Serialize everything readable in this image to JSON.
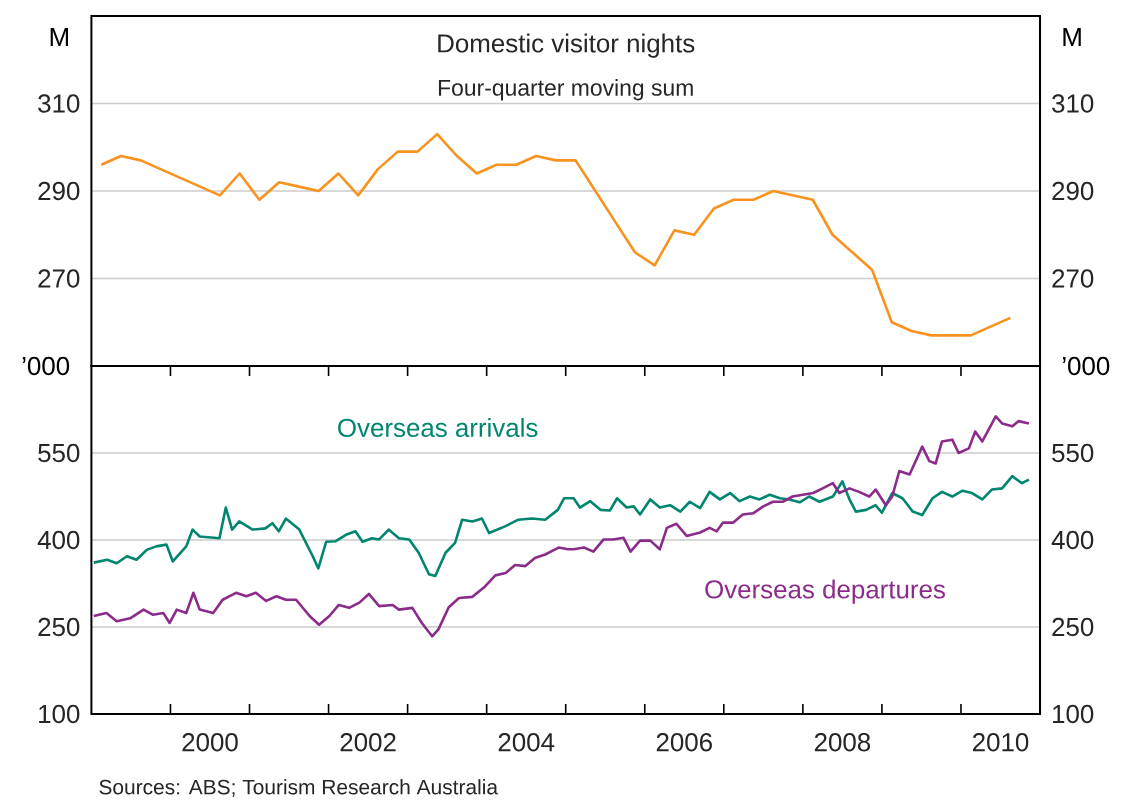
{
  "chart_data": [
    {
      "type": "line",
      "title": "Domestic visitor nights",
      "subtitle": "Four-quarter moving sum",
      "ylabel": "M",
      "y2label": "M",
      "color": "#f7931e",
      "x": [
        1999.125,
        1999.375,
        1999.625,
        1999.875,
        2000.125,
        2000.375,
        2000.625,
        2000.875,
        2001.125,
        2001.375,
        2001.625,
        2001.875,
        2002.125,
        2002.375,
        2002.625,
        2002.875,
        2003.125,
        2003.375,
        2003.625,
        2003.875,
        2004.125,
        2004.375,
        2004.625,
        2004.875,
        2005.125,
        2005.375,
        2005.625,
        2005.875,
        2006.125,
        2006.375,
        2006.625,
        2006.875,
        2007.125,
        2007.375,
        2007.625,
        2007.875,
        2008.125,
        2008.375,
        2008.625,
        2008.875,
        2009.125,
        2009.375,
        2009.625,
        2009.875,
        2010.125,
        2010.375,
        2010.625
      ],
      "values": [
        296,
        298,
        297,
        295,
        293,
        291,
        289,
        294,
        288,
        292,
        291,
        290,
        294,
        289,
        295,
        299,
        299,
        303,
        298,
        294,
        296,
        296,
        298,
        297,
        297,
        290,
        283,
        276,
        273,
        281,
        280,
        286,
        288,
        288,
        290,
        289,
        288,
        280,
        276,
        272,
        260,
        258,
        257,
        257,
        257,
        259,
        261
      ],
      "xlim": [
        1999,
        2011
      ],
      "ylim": [
        250,
        330
      ],
      "yticks": [
        270,
        290,
        310
      ],
      "y2lim": [
        250,
        330
      ],
      "y2ticks": [
        270,
        290,
        310
      ],
      "grid": "y",
      "tick_labels": "y"
    },
    {
      "type": "line",
      "ylabel": "’000",
      "y2label": "’000",
      "series": [
        {
          "name": "Overseas arrivals",
          "color": "#00866f",
          "x": [
            1999.03,
            1999.2,
            1999.32,
            1999.45,
            1999.57,
            1999.7,
            1999.82,
            1999.95,
            2000.03,
            2000.2,
            2000.28,
            2000.37,
            2000.62,
            2000.7,
            2000.78,
            2000.87,
            2001.04,
            2001.2,
            2001.29,
            2001.37,
            2001.46,
            2001.63,
            2001.8,
            2001.87,
            2001.97,
            2002.09,
            2002.22,
            2002.34,
            2002.43,
            2002.55,
            2002.64,
            2002.76,
            2002.89,
            2003.02,
            2003.14,
            2003.27,
            2003.35,
            2003.48,
            2003.6,
            2003.69,
            2003.82,
            2003.94,
            2004.03,
            2004.24,
            2004.4,
            2004.57,
            2004.74,
            2004.9,
            2004.98,
            2005.1,
            2005.18,
            2005.31,
            2005.44,
            2005.56,
            2005.65,
            2005.77,
            2005.86,
            2005.94,
            2006.07,
            2006.19,
            2006.32,
            2006.45,
            2006.57,
            2006.7,
            2006.82,
            2006.95,
            2007.08,
            2007.2,
            2007.33,
            2007.45,
            2007.58,
            2007.71,
            2007.83,
            2007.96,
            2008.08,
            2008.21,
            2008.38,
            2008.5,
            2008.59,
            2008.67,
            2008.8,
            2008.92,
            2009.0,
            2009.13,
            2009.26,
            2009.39,
            2009.51,
            2009.64,
            2009.76,
            2009.89,
            2010.02,
            2010.14,
            2010.27,
            2010.39,
            2010.52,
            2010.65,
            2010.77,
            2010.86
          ],
          "values": [
            361,
            366,
            360,
            372,
            366,
            383,
            389,
            392,
            363,
            389,
            418,
            406,
            403,
            456,
            418,
            432,
            418,
            420,
            429,
            415,
            437,
            418,
            372,
            351,
            397,
            398,
            409,
            415,
            397,
            403,
            401,
            418,
            403,
            401,
            378,
            341,
            338,
            378,
            395,
            435,
            432,
            437,
            412,
            424,
            435,
            437,
            435,
            452,
            472,
            472,
            456,
            467,
            452,
            451,
            472,
            456,
            458,
            444,
            470,
            456,
            460,
            449,
            466,
            455,
            483,
            470,
            481,
            467,
            475,
            470,
            478,
            472,
            470,
            465,
            475,
            466,
            475,
            501,
            470,
            449,
            452,
            460,
            447,
            481,
            472,
            449,
            443,
            472,
            483,
            475,
            485,
            481,
            470,
            487,
            489,
            510,
            498,
            504
          ]
        },
        {
          "name": "Overseas departures",
          "color": "#8b2c8b",
          "x": [
            1999.03,
            1999.19,
            1999.32,
            1999.49,
            1999.66,
            1999.78,
            1999.91,
            1999.99,
            2000.08,
            2000.2,
            2000.29,
            2000.37,
            2000.54,
            2000.66,
            2000.83,
            2000.96,
            2001.08,
            2001.21,
            2001.34,
            2001.46,
            2001.59,
            2001.76,
            2001.88,
            2002.01,
            2002.13,
            2002.26,
            2002.39,
            2002.51,
            2002.64,
            2002.81,
            2002.89,
            2003.06,
            2003.18,
            2003.31,
            2003.39,
            2003.52,
            2003.65,
            2003.82,
            2003.98,
            2004.11,
            2004.24,
            2004.36,
            2004.49,
            2004.61,
            2004.74,
            2004.91,
            2005.03,
            2005.1,
            2005.23,
            2005.35,
            2005.48,
            2005.6,
            2005.73,
            2005.82,
            2005.94,
            2006.07,
            2006.19,
            2006.28,
            2006.4,
            2006.53,
            2006.7,
            2006.82,
            2006.91,
            2006.99,
            2007.12,
            2007.24,
            2007.37,
            2007.5,
            2007.62,
            2007.75,
            2007.87,
            2008.0,
            2008.13,
            2008.25,
            2008.38,
            2008.46,
            2008.59,
            2008.71,
            2008.84,
            2008.92,
            2009.05,
            2009.13,
            2009.22,
            2009.35,
            2009.51,
            2009.6,
            2009.68,
            2009.76,
            2009.89,
            2009.97,
            2010.1,
            2010.18,
            2010.27,
            2010.44,
            2010.52,
            2010.65,
            2010.73,
            2010.86
          ],
          "values": [
            269,
            274,
            260,
            265,
            280,
            271,
            274,
            257,
            280,
            274,
            309,
            280,
            274,
            297,
            309,
            303,
            309,
            295,
            303,
            297,
            297,
            269,
            254,
            269,
            288,
            283,
            292,
            307,
            286,
            288,
            280,
            283,
            257,
            234,
            246,
            284,
            300,
            302,
            320,
            339,
            343,
            357,
            355,
            369,
            375,
            387,
            384,
            384,
            387,
            380,
            401,
            401,
            404,
            380,
            399,
            399,
            384,
            421,
            428,
            407,
            413,
            421,
            415,
            430,
            430,
            444,
            446,
            458,
            466,
            466,
            475,
            478,
            481,
            489,
            498,
            481,
            489,
            483,
            475,
            487,
            460,
            475,
            519,
            513,
            561,
            536,
            532,
            570,
            573,
            550,
            558,
            587,
            570,
            613,
            601,
            596,
            605,
            601
          ]
        }
      ],
      "xlim": [
        1999,
        2011
      ],
      "ylim": [
        100,
        700
      ],
      "yticks": [
        100,
        250,
        400,
        550
      ],
      "y2lim": [
        100,
        700
      ],
      "y2ticks": [
        100,
        250,
        400,
        550
      ],
      "xticks": [
        {
          "value": 2000,
          "label": null
        },
        {
          "value": 2001,
          "label": null
        },
        {
          "value": 2002,
          "label": null
        },
        {
          "value": 2003,
          "label": null
        },
        {
          "value": 2004,
          "label": null
        },
        {
          "value": 2005,
          "label": null
        },
        {
          "value": 2006,
          "label": null
        },
        {
          "value": 2007,
          "label": null
        },
        {
          "value": 2008,
          "label": null
        },
        {
          "value": 2009,
          "label": null
        },
        {
          "value": 2010,
          "label": null
        },
        {
          "value": 2000.5,
          "label": "2000"
        },
        {
          "value": 2002.5,
          "label": "2002"
        },
        {
          "value": 2004.5,
          "label": "2004"
        },
        {
          "value": 2006.5,
          "label": "2006"
        },
        {
          "value": 2008.5,
          "label": "2008"
        },
        {
          "value": 2010.5,
          "label": "2010"
        }
      ],
      "grid": "y",
      "annotations": [
        "Sources: ABS; Tourism Research Australia"
      ]
    }
  ]
}
